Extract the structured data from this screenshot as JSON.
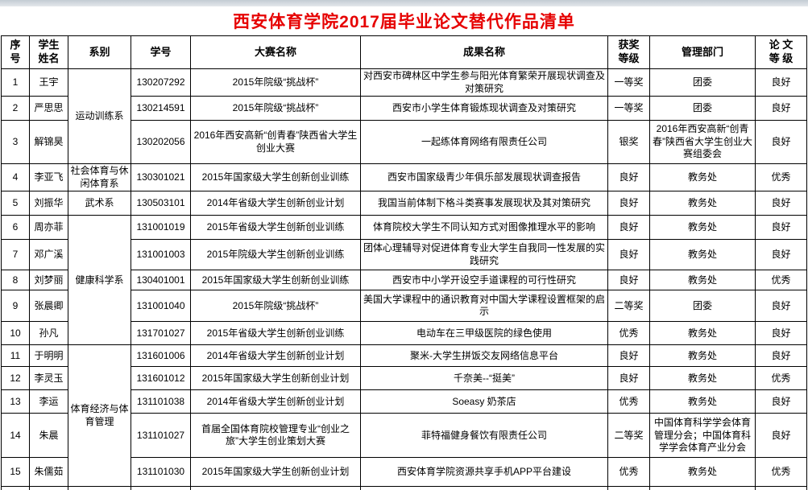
{
  "page": {
    "title": "西安体育学院2017届毕业论文替代作品清单",
    "title_color": "#e60000"
  },
  "table": {
    "columns": [
      {
        "key": "index",
        "label": "序\n号"
      },
      {
        "key": "name",
        "label": "学生\n姓名"
      },
      {
        "key": "division",
        "label": "系别"
      },
      {
        "key": "student_id",
        "label": "学号"
      },
      {
        "key": "competition",
        "label": "大赛名称"
      },
      {
        "key": "achievement",
        "label": "成果名称"
      },
      {
        "key": "award",
        "label": "获奖\n等级"
      },
      {
        "key": "admin_dept",
        "label": "管理部门"
      },
      {
        "key": "thesis_grade",
        "label": "论  文\n等  级"
      }
    ],
    "rows": [
      {
        "index": "1",
        "name": "王宇",
        "division": "运动训练系",
        "division_rowspan": 3,
        "student_id": "130207292",
        "competition": "2015年院级“挑战杯”",
        "achievement": "对西安市碑林区中学生参与阳光体育繁荣开展现状调查及对策研究",
        "award": "一等奖",
        "admin_dept": "团委",
        "thesis_grade": "良好"
      },
      {
        "index": "2",
        "name": "严思思",
        "division": null,
        "student_id": "130214591",
        "competition": "2015年院级“挑战杯”",
        "achievement": "西安市小学生体育锻炼现状调查及对策研究",
        "award": "一等奖",
        "admin_dept": "团委",
        "thesis_grade": "良好"
      },
      {
        "index": "3",
        "name": "解锦昊",
        "division": null,
        "student_id": "130202056",
        "competition": "2016年西安高新“创青春”陕西省大学生创业大赛",
        "achievement": "一起练体育网络有限责任公司",
        "award": "银奖",
        "admin_dept": "2016年西安高新“创青春”陕西省大学生创业大赛组委会",
        "thesis_grade": "良好"
      },
      {
        "index": "4",
        "name": "李亚飞",
        "division": "社会体育与休闲体育系",
        "division_rowspan": 1,
        "student_id": "130301021",
        "competition": "2015年国家级大学生创新创业训练",
        "achievement": "西安市国家级青少年俱乐部发展现状调查报告",
        "award": "良好",
        "admin_dept": "教务处",
        "thesis_grade": "优秀"
      },
      {
        "index": "5",
        "name": "刘振华",
        "division": "武术系",
        "division_rowspan": 1,
        "student_id": "130503101",
        "competition": "2014年省级大学生创新创业计划",
        "achievement": "我国当前体制下格斗类赛事发展现状及其对策研究",
        "award": "良好",
        "admin_dept": "教务处",
        "thesis_grade": "良好"
      },
      {
        "index": "6",
        "name": "周亦菲",
        "division": "健康科学系",
        "division_rowspan": 5,
        "student_id": "131001019",
        "competition": "2015年省级大学生创新创业训练",
        "achievement": "体育院校大学生不同认知方式对图像推理水平的影响",
        "award": "良好",
        "admin_dept": "教务处",
        "thesis_grade": "良好"
      },
      {
        "index": "7",
        "name": "邓广溪",
        "division": null,
        "student_id": "131001003",
        "competition": "2015年院级大学生创新创业训练",
        "achievement": "团体心理辅导对促进体育专业大学生自我同一性发展的实践研究",
        "award": "良好",
        "admin_dept": "教务处",
        "thesis_grade": "良好"
      },
      {
        "index": "8",
        "name": "刘梦丽",
        "division": null,
        "student_id": "130401001",
        "competition": "2015年国家级大学生创新创业训练",
        "achievement": "西安市中小学开设空手道课程的可行性研究",
        "award": "良好",
        "admin_dept": "教务处",
        "thesis_grade": "优秀"
      },
      {
        "index": "9",
        "name": "张晨卿",
        "division": null,
        "student_id": "131001040",
        "competition": "2015年院级“挑战杯”",
        "achievement": "美国大学课程中的通识教育对中国大学课程设置框架的启示",
        "award": "二等奖",
        "admin_dept": "团委",
        "thesis_grade": "良好"
      },
      {
        "index": "10",
        "name": "孙凡",
        "division": null,
        "student_id": "131701027",
        "competition": "2015年省级大学生创新创业训练",
        "achievement": "电动车在三甲级医院的绿色使用",
        "award": "优秀",
        "admin_dept": "教务处",
        "thesis_grade": "良好"
      },
      {
        "index": "11",
        "name": "于明明",
        "division": "体育经济与体育管理",
        "division_rowspan": 5,
        "student_id": "131601006",
        "competition": "2014年省级大学生创新创业计划",
        "achievement": "聚米-大学生拼饭交友网络信息平台",
        "award": "良好",
        "admin_dept": "教务处",
        "thesis_grade": "良好"
      },
      {
        "index": "12",
        "name": "李灵玉",
        "division": null,
        "student_id": "131601012",
        "competition": "2015年国家级大学生创新创业计划",
        "achievement": "千奈美--“挺美”",
        "award": "良好",
        "admin_dept": "教务处",
        "thesis_grade": "优秀"
      },
      {
        "index": "13",
        "name": "李运",
        "division": null,
        "student_id": "131101038",
        "competition": "2014年省级大学生创新创业计划",
        "achievement": "Soeasy 奶茶店",
        "award": "优秀",
        "admin_dept": "教务处",
        "thesis_grade": "良好"
      },
      {
        "index": "14",
        "name": "朱晨",
        "division": null,
        "student_id": "131101027",
        "competition": "首届全国体育院校管理专业“创业之旅”大学生创业策划大赛",
        "achievement": "菲特福健身餐饮有限责任公司",
        "award": "二等奖",
        "admin_dept": "中国体育科学学会体育管理分会；中国体育科学学会体育产业分会",
        "thesis_grade": "良好"
      },
      {
        "index": "15",
        "name": "朱儒茹",
        "division": null,
        "student_id": "131101030",
        "competition": "2015年国家级大学生创新创业计划",
        "achievement": "西安体育学院资源共享手机APP平台建设",
        "award": "优秀",
        "admin_dept": "教务处",
        "thesis_grade": "优秀"
      }
    ],
    "division_groups": [
      {
        "name": "运动训练系",
        "rows": "1-3"
      },
      {
        "name": "社会体育与休闲体育系",
        "rows": "4"
      },
      {
        "name": "武术系",
        "rows": "5"
      },
      {
        "name": "健康科学系",
        "rows": "6-10"
      },
      {
        "name": "体育经济与体育管理",
        "rows": "11-15"
      }
    ]
  }
}
